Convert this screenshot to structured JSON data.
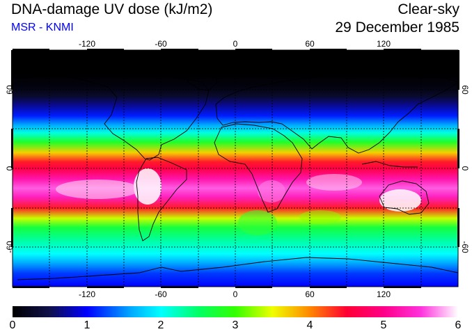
{
  "title": "DNA-damage UV dose (kJ/m2)",
  "subtitle": "MSR - KNMI",
  "sky_condition": "Clear-sky",
  "date": "29 December 1985",
  "longitude_ticks": [
    "-120",
    "-60",
    "0",
    "60",
    "120"
  ],
  "latitude_ticks_left": [
    "60",
    "0",
    "-60"
  ],
  "latitude_ticks_right": [
    "60",
    "0",
    "-60"
  ],
  "colorbar": {
    "labels": [
      "0",
      "1",
      "2",
      "3",
      "4",
      "5",
      "6"
    ],
    "min": 0,
    "max": 6,
    "stops": [
      {
        "value": 0.0,
        "color": "#000000"
      },
      {
        "value": 0.5,
        "color": "#10104a"
      },
      {
        "value": 1.0,
        "color": "#0000ff"
      },
      {
        "value": 1.6,
        "color": "#00aaff"
      },
      {
        "value": 2.0,
        "color": "#00ffff"
      },
      {
        "value": 2.5,
        "color": "#00ff66"
      },
      {
        "value": 3.0,
        "color": "#33ff00"
      },
      {
        "value": 3.5,
        "color": "#eeff00"
      },
      {
        "value": 4.0,
        "color": "#ff8800"
      },
      {
        "value": 4.5,
        "color": "#ff0033"
      },
      {
        "value": 5.0,
        "color": "#ff0088"
      },
      {
        "value": 5.5,
        "color": "#ff33dd"
      },
      {
        "value": 6.0,
        "color": "#ffffff"
      }
    ]
  },
  "latitude_profile": [
    {
      "lat": 90,
      "dose": 0.0
    },
    {
      "lat": 72,
      "dose": 0.0
    },
    {
      "lat": 62,
      "dose": 0.1
    },
    {
      "lat": 55,
      "dose": 0.3
    },
    {
      "lat": 48,
      "dose": 0.7
    },
    {
      "lat": 40,
      "dose": 1.1
    },
    {
      "lat": 33,
      "dose": 1.6
    },
    {
      "lat": 27,
      "dose": 2.1
    },
    {
      "lat": 20,
      "dose": 2.8
    },
    {
      "lat": 12,
      "dose": 3.7
    },
    {
      "lat": 5,
      "dose": 4.4
    },
    {
      "lat": 0,
      "dose": 4.6
    },
    {
      "lat": -8,
      "dose": 5.2
    },
    {
      "lat": -15,
      "dose": 5.6
    },
    {
      "lat": -22,
      "dose": 5.3
    },
    {
      "lat": -30,
      "dose": 4.4
    },
    {
      "lat": -38,
      "dose": 3.4
    },
    {
      "lat": -45,
      "dose": 2.7
    },
    {
      "lat": -55,
      "dose": 2.3
    },
    {
      "lat": -65,
      "dose": 2.0
    },
    {
      "lat": -72,
      "dose": 1.6
    },
    {
      "lat": -80,
      "dose": 1.2
    },
    {
      "lat": -90,
      "dose": 1.0
    }
  ],
  "colors": {
    "title_text": "#000000",
    "subtitle_text": "#0000ff",
    "coastline": "#000000",
    "grid": "#000000"
  }
}
